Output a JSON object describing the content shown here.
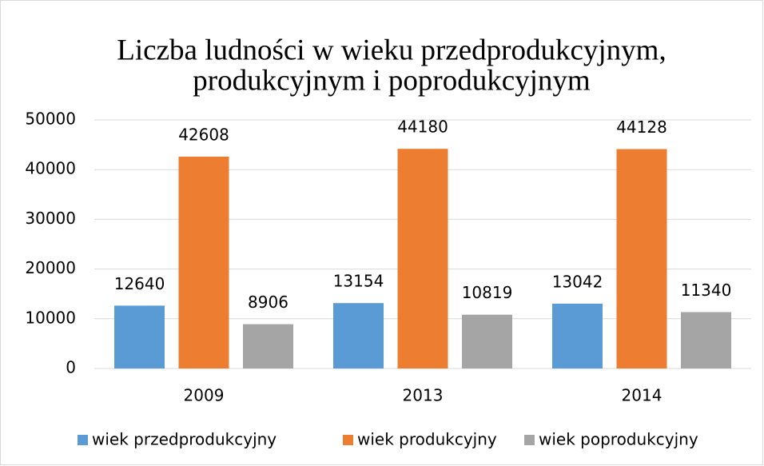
{
  "chart_data": {
    "type": "bar",
    "title": [
      "Liczba ludności w wieku przedprodukcyjnym,",
      "produkcyjnym i poprodukcyjnym"
    ],
    "categories": [
      "2009",
      "2013",
      "2014"
    ],
    "series": [
      {
        "name": "wiek przedprodukcyjny",
        "color": "#5b9bd5",
        "values": [
          12640,
          13154,
          13042
        ]
      },
      {
        "name": "wiek produkcyjny",
        "color": "#ed7d31",
        "values": [
          42608,
          44180,
          44128
        ]
      },
      {
        "name": "wiek poprodukcyjny",
        "color": "#a5a5a5",
        "values": [
          8906,
          10819,
          11340
        ]
      }
    ],
    "ylim": [
      0,
      50000
    ],
    "yticks": [
      0,
      10000,
      20000,
      30000,
      40000,
      50000
    ],
    "grid": true,
    "legend": "bottom"
  }
}
